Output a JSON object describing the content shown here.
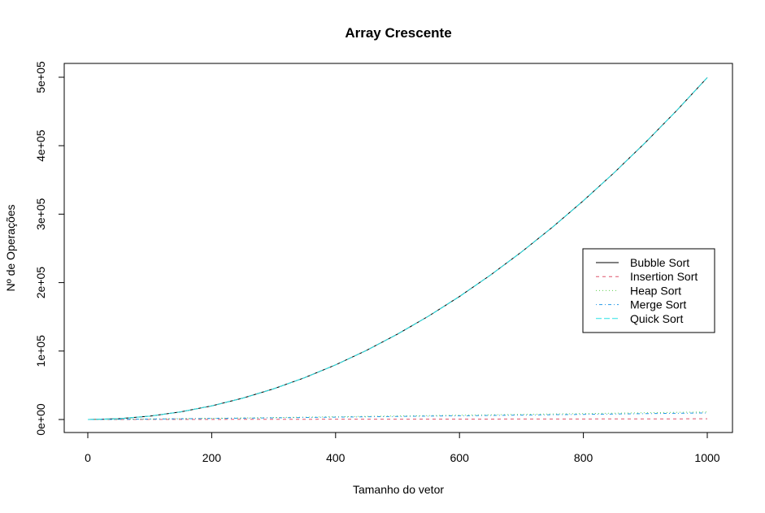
{
  "chart_data": {
    "type": "line",
    "title": "Array Crescente",
    "xlabel": "Tamanho do vetor",
    "ylabel": "Nº de Operações",
    "xlim": [
      0,
      1000
    ],
    "ylim": [
      0,
      500000
    ],
    "x_ticks": [
      0,
      200,
      400,
      600,
      800,
      1000
    ],
    "x_tick_labels": [
      "0",
      "200",
      "400",
      "600",
      "800",
      "1000"
    ],
    "y_ticks": [
      0,
      100000,
      200000,
      300000,
      400000,
      500000
    ],
    "y_tick_labels": [
      "0e+00",
      "1e+05",
      "2e+05",
      "3e+05",
      "4e+05",
      "5e+05"
    ],
    "grid": false,
    "legend_position": "right",
    "x": [
      0,
      50,
      100,
      150,
      200,
      250,
      300,
      350,
      400,
      450,
      500,
      550,
      600,
      650,
      700,
      750,
      800,
      850,
      900,
      950,
      1000
    ],
    "series": [
      {
        "name": "Bubble Sort",
        "color": "#000000",
        "dash": "solid",
        "values": [
          0,
          1225,
          4950,
          11175,
          19900,
          31125,
          44850,
          61075,
          79800,
          101025,
          124750,
          150975,
          179700,
          210925,
          244650,
          280875,
          319600,
          360825,
          404550,
          450775,
          499500
        ]
      },
      {
        "name": "Insertion Sort",
        "color": "#DF536B",
        "dash": "dashed",
        "values": [
          0,
          50,
          100,
          150,
          200,
          250,
          300,
          350,
          400,
          450,
          500,
          550,
          600,
          650,
          700,
          750,
          800,
          850,
          900,
          950,
          1000
        ]
      },
      {
        "name": "Heap Sort",
        "color": "#61D04F",
        "dash": "dotted",
        "values": [
          0,
          300,
          750,
          1250,
          1750,
          2300,
          2850,
          3400,
          4000,
          4550,
          5150,
          5700,
          6300,
          6850,
          7450,
          8050,
          8650,
          9250,
          9850,
          10450,
          11000
        ]
      },
      {
        "name": "Merge Sort",
        "color": "#2297E6",
        "dash": "dotdash",
        "values": [
          0,
          250,
          650,
          1050,
          1500,
          1950,
          2450,
          2950,
          3450,
          3950,
          4450,
          4950,
          5450,
          5950,
          6450,
          7000,
          7500,
          8000,
          8550,
          9050,
          9600
        ]
      },
      {
        "name": "Quick Sort",
        "color": "#28E2E5",
        "dash": "longdash",
        "values": [
          0,
          1225,
          4950,
          11175,
          19900,
          31125,
          44850,
          61075,
          79800,
          101025,
          124750,
          150975,
          179700,
          210925,
          244650,
          280875,
          319600,
          360825,
          404550,
          450775,
          499500
        ]
      }
    ]
  }
}
